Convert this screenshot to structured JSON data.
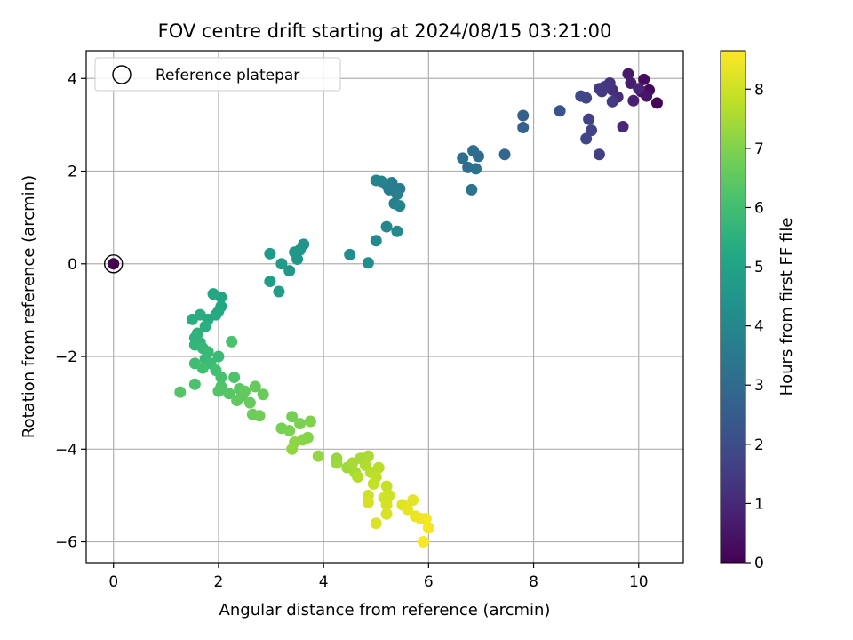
{
  "chart_data": {
    "type": "scatter",
    "title": "FOV centre drift starting at 2024/08/15 03:21:00",
    "xlabel": "Angular distance from reference (arcmin)",
    "ylabel": "Rotation from reference (arcmin)",
    "xlim": [
      -0.52,
      10.85
    ],
    "ylim": [
      -6.45,
      4.6
    ],
    "xticks": [
      0,
      2,
      4,
      6,
      8,
      10
    ],
    "yticks": [
      -6,
      -4,
      -2,
      0,
      2,
      4
    ],
    "grid": true,
    "legend": {
      "placement": "top-left",
      "entries": [
        "Reference platepar"
      ]
    },
    "reference_point": {
      "x": 0,
      "y": 0,
      "c": 0
    },
    "colorbar": {
      "label": "Hours from first FF file",
      "range": [
        0,
        8.65
      ],
      "ticks": [
        0,
        1,
        2,
        3,
        4,
        5,
        6,
        7,
        8
      ],
      "colormap": "viridis"
    },
    "points": [
      [
        10.35,
        3.47,
        0.1
      ],
      [
        10.2,
        3.75,
        0.2
      ],
      [
        10.1,
        3.98,
        0.3
      ],
      [
        10.05,
        3.72,
        0.4
      ],
      [
        10.15,
        3.62,
        0.5
      ],
      [
        9.8,
        4.1,
        0.6
      ],
      [
        9.85,
        3.9,
        0.7
      ],
      [
        9.9,
        3.52,
        0.8
      ],
      [
        10.0,
        3.78,
        0.9
      ],
      [
        9.7,
        2.96,
        1.0
      ],
      [
        9.6,
        3.6,
        1.1
      ],
      [
        9.5,
        3.75,
        1.2
      ],
      [
        9.45,
        3.9,
        1.3
      ],
      [
        9.35,
        3.82,
        1.35
      ],
      [
        9.3,
        3.72,
        1.4
      ],
      [
        9.25,
        3.78,
        1.45
      ],
      [
        9.5,
        3.5,
        1.5
      ],
      [
        9.25,
        2.36,
        1.6
      ],
      [
        9.05,
        3.12,
        1.65
      ],
      [
        9.1,
        2.88,
        1.7
      ],
      [
        9.0,
        2.7,
        1.75
      ],
      [
        9.0,
        3.58,
        1.8
      ],
      [
        8.9,
        3.62,
        1.85
      ],
      [
        8.5,
        3.3,
        2.2
      ],
      [
        7.8,
        3.2,
        2.6
      ],
      [
        7.8,
        2.94,
        2.7
      ],
      [
        7.45,
        2.36,
        2.9
      ],
      [
        6.95,
        2.32,
        3.0
      ],
      [
        6.85,
        2.44,
        3.05
      ],
      [
        6.75,
        2.08,
        3.1
      ],
      [
        6.65,
        2.28,
        3.15
      ],
      [
        6.9,
        2.05,
        3.2
      ],
      [
        6.82,
        1.6,
        3.3
      ],
      [
        5.45,
        1.62,
        3.5
      ],
      [
        5.3,
        1.75,
        3.55
      ],
      [
        5.25,
        1.6,
        3.6
      ],
      [
        5.2,
        1.7,
        3.65
      ],
      [
        5.4,
        1.5,
        3.7
      ],
      [
        5.35,
        1.3,
        3.75
      ],
      [
        5.45,
        1.25,
        3.8
      ],
      [
        5.1,
        1.78,
        3.85
      ],
      [
        5.0,
        1.8,
        3.9
      ],
      [
        5.2,
        0.8,
        3.95
      ],
      [
        5.4,
        0.7,
        4.0
      ],
      [
        5.0,
        0.5,
        4.05
      ],
      [
        4.5,
        0.2,
        4.2
      ],
      [
        4.85,
        0.02,
        4.3
      ],
      [
        3.62,
        0.42,
        4.4
      ],
      [
        3.55,
        0.3,
        4.45
      ],
      [
        3.45,
        0.25,
        4.5
      ],
      [
        3.5,
        0.1,
        4.55
      ],
      [
        3.35,
        -0.15,
        4.6
      ],
      [
        3.2,
        0.0,
        4.65
      ],
      [
        2.98,
        0.22,
        4.7
      ],
      [
        3.15,
        -0.6,
        4.75
      ],
      [
        2.98,
        -0.38,
        4.8
      ],
      [
        2.05,
        -0.72,
        5.05
      ],
      [
        1.9,
        -0.65,
        5.1
      ],
      [
        2.05,
        -0.92,
        5.15
      ],
      [
        2.0,
        -1.02,
        5.2
      ],
      [
        1.95,
        -1.1,
        5.25
      ],
      [
        1.8,
        -1.2,
        5.3
      ],
      [
        1.65,
        -1.1,
        5.35
      ],
      [
        1.5,
        -1.2,
        5.4
      ],
      [
        1.75,
        -1.35,
        5.45
      ],
      [
        1.6,
        -1.5,
        5.5
      ],
      [
        1.55,
        -1.6,
        5.55
      ],
      [
        1.65,
        -1.7,
        5.6
      ],
      [
        1.55,
        -1.75,
        5.65
      ],
      [
        1.7,
        -1.82,
        5.7
      ],
      [
        1.8,
        -1.9,
        5.75
      ],
      [
        1.75,
        -2.05,
        5.8
      ],
      [
        2.0,
        -2.0,
        5.85
      ],
      [
        1.85,
        -2.15,
        5.9
      ],
      [
        1.55,
        -2.15,
        5.95
      ],
      [
        1.7,
        -2.25,
        6.0
      ],
      [
        1.95,
        -2.3,
        6.05
      ],
      [
        2.05,
        -2.45,
        6.1
      ],
      [
        2.25,
        -1.68,
        6.15
      ],
      [
        1.55,
        -2.6,
        6.15
      ],
      [
        2.3,
        -2.45,
        6.2
      ],
      [
        2.05,
        -2.65,
        6.25
      ],
      [
        2.0,
        -2.75,
        6.3
      ],
      [
        2.2,
        -2.8,
        6.35
      ],
      [
        2.4,
        -2.7,
        6.4
      ],
      [
        2.45,
        -2.85,
        6.45
      ],
      [
        2.35,
        -2.95,
        6.5
      ],
      [
        2.5,
        -2.75,
        6.55
      ],
      [
        2.7,
        -2.65,
        6.6
      ],
      [
        2.6,
        -3.0,
        6.6
      ],
      [
        2.85,
        -2.82,
        6.65
      ],
      [
        2.65,
        -3.25,
        6.7
      ],
      [
        2.78,
        -3.28,
        6.75
      ],
      [
        1.27,
        -2.77,
        6.3
      ],
      [
        3.4,
        -3.3,
        6.8
      ],
      [
        3.2,
        -3.55,
        6.85
      ],
      [
        3.35,
        -3.6,
        6.9
      ],
      [
        3.55,
        -3.45,
        6.95
      ],
      [
        3.75,
        -3.4,
        7.0
      ],
      [
        3.7,
        -3.75,
        7.05
      ],
      [
        3.6,
        -3.8,
        7.1
      ],
      [
        3.45,
        -3.85,
        7.15
      ],
      [
        3.4,
        -4.0,
        7.2
      ],
      [
        3.9,
        -4.15,
        7.25
      ],
      [
        4.25,
        -4.2,
        7.3
      ],
      [
        4.25,
        -4.3,
        7.35
      ],
      [
        4.45,
        -4.4,
        7.4
      ],
      [
        4.6,
        -4.5,
        7.45
      ],
      [
        4.55,
        -4.3,
        7.5
      ],
      [
        4.7,
        -4.2,
        7.5
      ],
      [
        4.85,
        -4.15,
        7.55
      ],
      [
        4.8,
        -4.35,
        7.6
      ],
      [
        4.65,
        -4.6,
        7.65
      ],
      [
        4.9,
        -4.5,
        7.7
      ],
      [
        5.05,
        -4.4,
        7.75
      ],
      [
        5.0,
        -4.6,
        7.8
      ],
      [
        4.95,
        -4.75,
        7.85
      ],
      [
        5.2,
        -4.8,
        7.9
      ],
      [
        5.2,
        -5.1,
        7.95
      ],
      [
        4.85,
        -5.0,
        8.0
      ],
      [
        5.25,
        -5.0,
        8.0
      ],
      [
        5.15,
        -5.05,
        8.05
      ],
      [
        5.2,
        -5.2,
        8.1
      ],
      [
        4.85,
        -5.15,
        8.1
      ],
      [
        5.2,
        -5.4,
        8.15
      ],
      [
        5.0,
        -5.6,
        8.2
      ],
      [
        5.5,
        -5.2,
        8.25
      ],
      [
        5.7,
        -5.1,
        8.3
      ],
      [
        5.6,
        -5.3,
        8.35
      ],
      [
        5.75,
        -5.45,
        8.4
      ],
      [
        5.85,
        -5.5,
        8.45
      ],
      [
        5.95,
        -5.5,
        8.5
      ],
      [
        6.0,
        -5.7,
        8.55
      ],
      [
        5.9,
        -6.0,
        8.6
      ]
    ]
  }
}
